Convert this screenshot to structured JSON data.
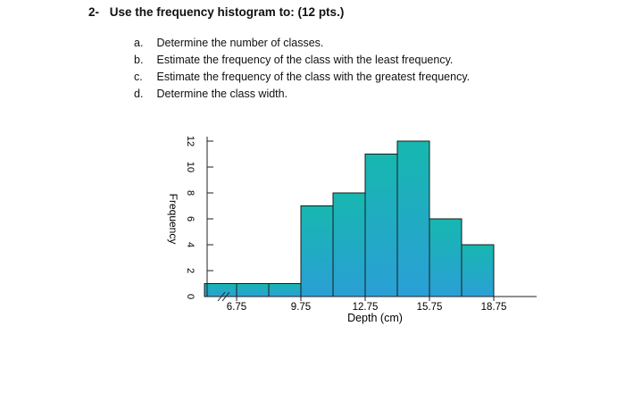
{
  "question": {
    "number": "2-",
    "title": "Use the frequency histogram to: (12 pts.)",
    "items": [
      {
        "letter": "a.",
        "text": "Determine the number of classes."
      },
      {
        "letter": "b.",
        "text": "Estimate the frequency of the class with the least frequency."
      },
      {
        "letter": "c.",
        "text": "Estimate the frequency of the class with the greatest frequency."
      },
      {
        "letter": "d.",
        "text": "Determine the class width."
      }
    ]
  },
  "chart_data": {
    "type": "bar",
    "title": "",
    "xlabel": "Depth (cm)",
    "ylabel": "Frequency",
    "ylim": [
      0,
      12
    ],
    "yticks": [
      0,
      2,
      4,
      6,
      8,
      10,
      12
    ],
    "xticks": [
      6.75,
      9.75,
      12.75,
      15.75,
      18.75
    ],
    "xtick_labels": [
      "6.75",
      "9.75",
      "12.75",
      "15.75",
      "18.75"
    ],
    "bin_start": 5.25,
    "bin_width": 1.5,
    "values": [
      1,
      1,
      1,
      7,
      8,
      11,
      12,
      6,
      4
    ],
    "axis_break": true,
    "grid": false,
    "bar_color": "#1fb2c2"
  }
}
